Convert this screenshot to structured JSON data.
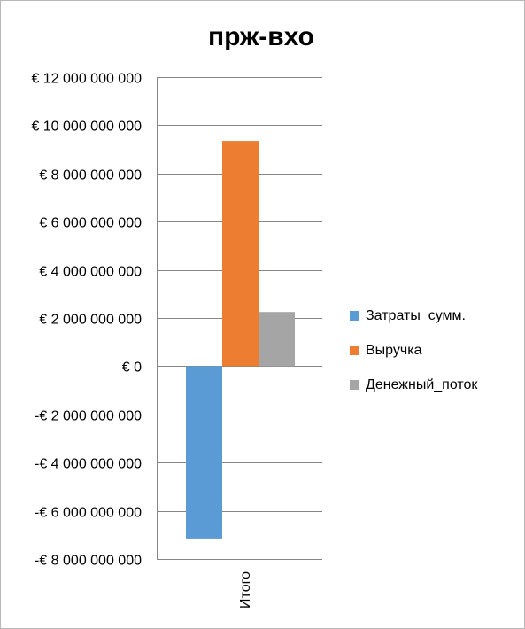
{
  "chart_data": {
    "type": "bar",
    "title": "прж-вхо",
    "categories": [
      "Итого"
    ],
    "series": [
      {
        "name": "Затраты_сумм.",
        "color": "#5b9bd5",
        "values": [
          -7150000000
        ]
      },
      {
        "name": "Выручка",
        "color": "#ed7d31",
        "values": [
          9350000000
        ]
      },
      {
        "name": "Денежный_поток",
        "color": "#a5a5a5",
        "values": [
          2250000000
        ]
      }
    ],
    "ylim": [
      -8000000000,
      12000000000
    ],
    "yticks": [
      12000000000,
      10000000000,
      8000000000,
      6000000000,
      4000000000,
      2000000000,
      0,
      -2000000000,
      -4000000000,
      -6000000000,
      -8000000000
    ],
    "ytick_labels": [
      "€ 12 000 000 000",
      "€ 10 000 000 000",
      "€ 8 000 000 000",
      "€ 6 000 000 000",
      "€ 4 000 000 000",
      "€ 2 000 000 000",
      "€ 0",
      "-€ 2 000 000 000",
      "-€ 4 000 000 000",
      "-€ 6 000 000 000",
      "-€ 8 000 000 000"
    ],
    "grid": true,
    "legend": "right"
  }
}
